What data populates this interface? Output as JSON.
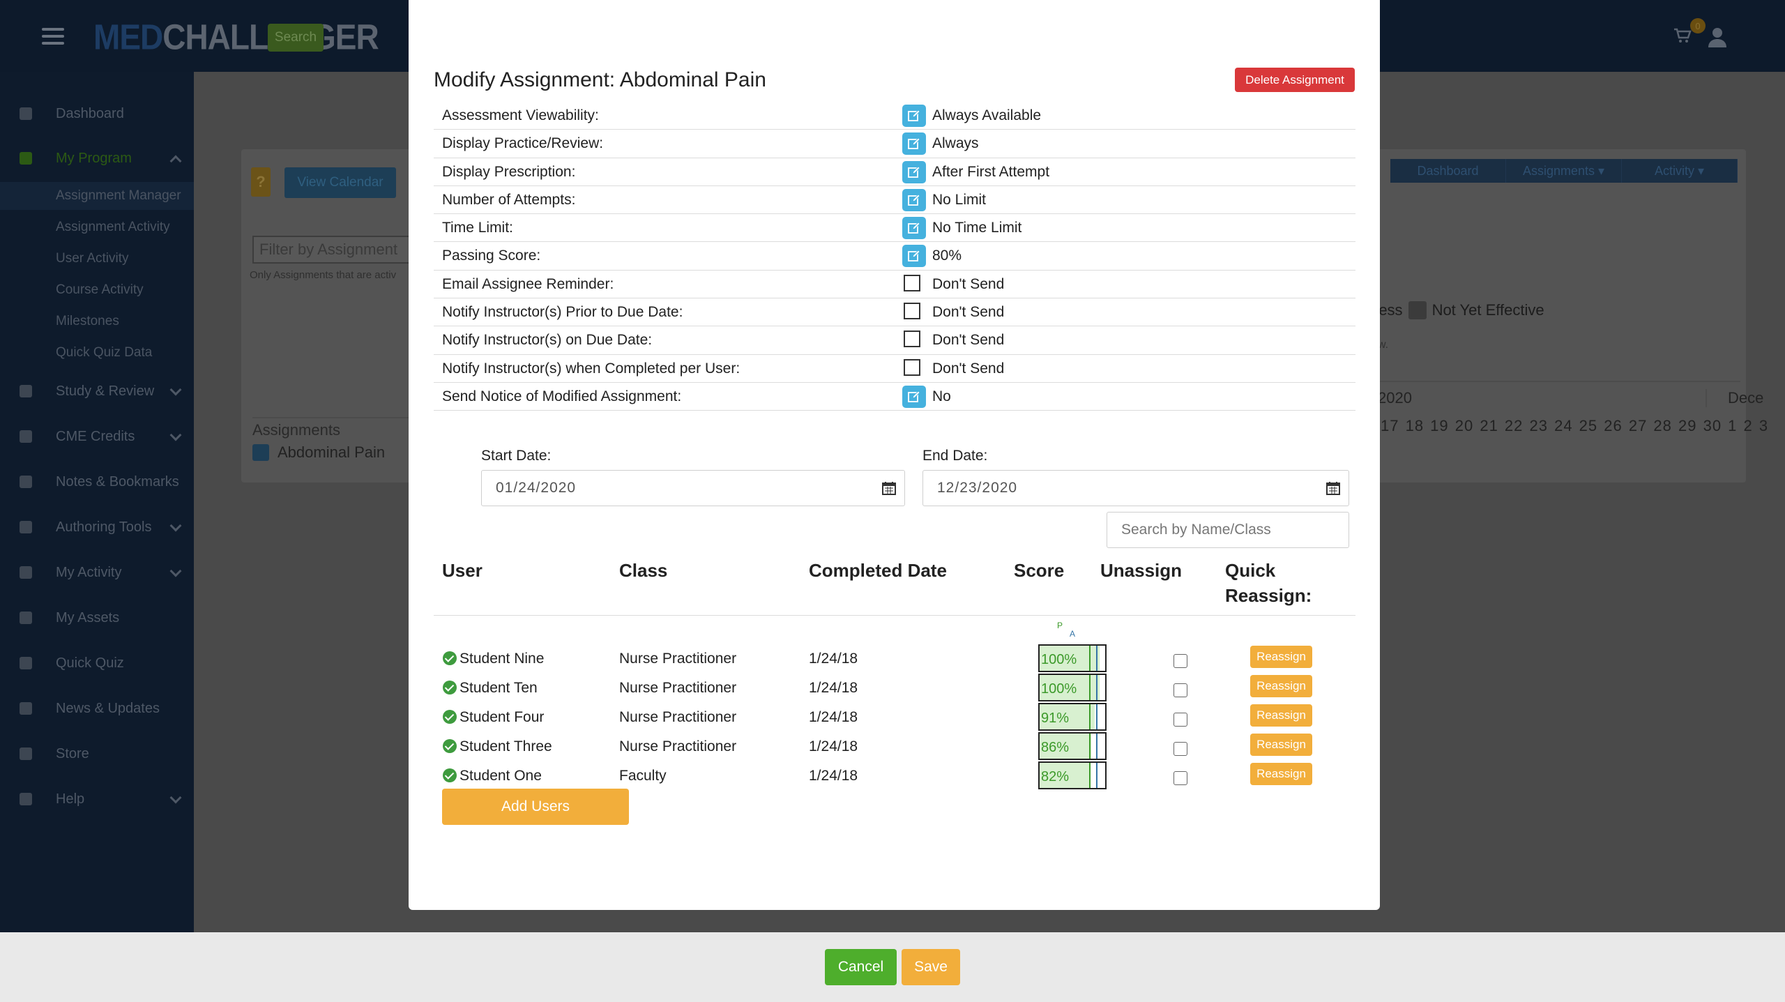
{
  "app": {
    "logo_med": "MED",
    "logo_rest": "CHALLENGER",
    "search_button": "Search",
    "cart_count": "0"
  },
  "sidebar": {
    "items": [
      {
        "label": "Dashboard"
      },
      {
        "label": "My Program"
      },
      {
        "label": "Study & Review"
      },
      {
        "label": "CME Credits"
      },
      {
        "label": "Notes & Bookmarks"
      },
      {
        "label": "Authoring Tools"
      },
      {
        "label": "My Activity"
      },
      {
        "label": "My Assets"
      },
      {
        "label": "Quick Quiz"
      },
      {
        "label": "News & Updates"
      },
      {
        "label": "Store"
      },
      {
        "label": "Help"
      }
    ],
    "subitems": [
      {
        "label": "Assignment Manager"
      },
      {
        "label": "Assignment Activity"
      },
      {
        "label": "User Activity"
      },
      {
        "label": "Course Activity"
      },
      {
        "label": "Milestones"
      },
      {
        "label": "Quick Quiz Data"
      }
    ]
  },
  "background": {
    "help_button": "?",
    "view_calendar": "View Calendar",
    "filter_placeholder": "Filter by Assignment",
    "only_note": "Only Assignments that are activ",
    "assignments_header": "Assignments",
    "assignment_row": "Abdominal Pain",
    "tabs": [
      "Dashboard",
      "Assignments ▾",
      "Activity ▾"
    ],
    "legend_frag": "ress",
    "legend_label": "Not Yet Effective",
    "w_frag": "w.",
    "cal_year": "2020",
    "cal_month_next": "Dece",
    "cal_days": "17 18 19 20 21 22 23 24 25 26 27 28 29 30 1 2 3"
  },
  "modal": {
    "title": "Modify Assignment: Abdominal Pain",
    "delete_button": "Delete Assignment",
    "settings": [
      {
        "label": "Assessment Viewability:",
        "control": "edit",
        "value": "Always Available"
      },
      {
        "label": "Display Practice/Review:",
        "control": "edit",
        "value": "Always"
      },
      {
        "label": "Display Prescription:",
        "control": "edit",
        "value": "After First Attempt"
      },
      {
        "label": "Number of Attempts:",
        "control": "edit",
        "value": "No Limit"
      },
      {
        "label": "Time Limit:",
        "control": "edit",
        "value": "No Time Limit"
      },
      {
        "label": "Passing Score:",
        "control": "edit",
        "value": "80%"
      },
      {
        "label": "Email Assignee Reminder:",
        "control": "checkbox",
        "value": "Don't Send"
      },
      {
        "label": "Notify Instructor(s) Prior to Due Date:",
        "control": "checkbox",
        "value": "Don't Send"
      },
      {
        "label": "Notify Instructor(s) on Due Date:",
        "control": "checkbox",
        "value": "Don't Send"
      },
      {
        "label": "Notify Instructor(s) when Completed per User:",
        "control": "checkbox",
        "value": "Don't Send"
      },
      {
        "label": "Send Notice of Modified Assignment:",
        "control": "edit",
        "value": "No"
      }
    ],
    "start_date_label": "Start Date:",
    "start_date": "01/24/2020",
    "end_date_label": "End Date:",
    "end_date": "12/23/2020",
    "search_placeholder": "Search by Name/Class",
    "columns": [
      "User",
      "Class",
      "Completed Date",
      "Score",
      "Unassign",
      "Quick Reassign:"
    ],
    "score_markers": {
      "p": "P",
      "a": "A"
    },
    "users": [
      {
        "name": "Student Nine",
        "class": "Nurse Practitioner",
        "completed": "1/24/18",
        "score": "100%",
        "score_value": 100
      },
      {
        "name": "Student Ten",
        "class": "Nurse Practitioner",
        "completed": "1/24/18",
        "score": "100%",
        "score_value": 100
      },
      {
        "name": "Student Four",
        "class": "Nurse Practitioner",
        "completed": "1/24/18",
        "score": "91%",
        "score_value": 91
      },
      {
        "name": "Student Three",
        "class": "Nurse Practitioner",
        "completed": "1/24/18",
        "score": "86%",
        "score_value": 86
      },
      {
        "name": "Student One",
        "class": "Faculty",
        "completed": "1/24/18",
        "score": "82%",
        "score_value": 82
      }
    ],
    "reassign_label": "Reassign",
    "add_users_button": "Add Users"
  },
  "footer": {
    "cancel_button": "Cancel",
    "save_button": "Save"
  }
}
